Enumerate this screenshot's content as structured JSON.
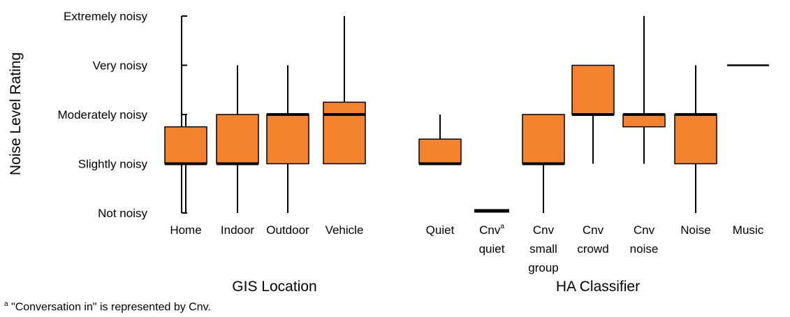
{
  "chart_data": {
    "type": "box",
    "ylabel": "Noise Level Rating",
    "y_levels": [
      "Not noisy",
      "Slightly noisy",
      "Moderately noisy",
      "Very noisy",
      "Extremely noisy"
    ],
    "ylim": [
      1,
      5
    ],
    "grid": false,
    "colors": {
      "box_fill": "#F5822F",
      "line": "#000000"
    },
    "groups": [
      {
        "label": "GIS Location",
        "categories": [
          {
            "label": "Home",
            "min": 1,
            "q1": 2,
            "median": 2,
            "q3": 2.75,
            "max": 3
          },
          {
            "label": "Indoor",
            "min": 1,
            "q1": 2,
            "median": 2,
            "q3": 3,
            "max": 4
          },
          {
            "label": "Outdoor",
            "min": 1,
            "q1": 2,
            "median": 3,
            "q3": 3,
            "max": 4
          },
          {
            "label": "Vehicle",
            "min": 2,
            "q1": 2,
            "median": 3,
            "q3": 3.25,
            "max": 5
          }
        ]
      },
      {
        "label": "HA Classifier",
        "categories": [
          {
            "label": "Quiet",
            "min": 2,
            "q1": 2,
            "median": 2,
            "q3": 2.5,
            "max": 3
          },
          {
            "label": "Cnv",
            "label_sup": "a",
            "label_line2": "quiet",
            "min": 1,
            "q1": 1,
            "median": 1,
            "q3": 1,
            "max": 1
          },
          {
            "label": "Cnv",
            "label_line2": "small",
            "label_line3": "group",
            "min": 1,
            "q1": 2,
            "median": 2,
            "q3": 3,
            "max": 3
          },
          {
            "label": "Cnv",
            "label_line2": "crowd",
            "min": 2,
            "q1": 3,
            "median": 3,
            "q3": 4,
            "max": 4
          },
          {
            "label": "Cnv",
            "label_line2": "noise",
            "min": 2,
            "q1": 2.75,
            "median": 3,
            "q3": 3,
            "max": 5
          },
          {
            "label": "Noise",
            "min": 1,
            "q1": 2,
            "median": 3,
            "q3": 3,
            "max": 4
          },
          {
            "label": "Music",
            "min": 4,
            "q1": 4,
            "median": 4,
            "q3": 4,
            "max": 4
          }
        ]
      }
    ]
  },
  "footnote": {
    "marker": "a",
    "text": " \"Conversation in\" is represented by Cnv."
  }
}
